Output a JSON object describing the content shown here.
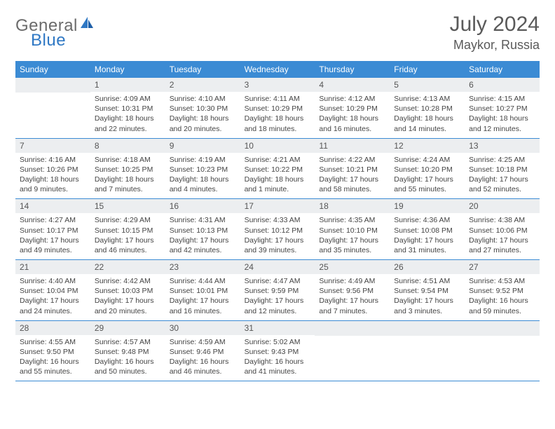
{
  "brand": {
    "part1": "General",
    "part2": "Blue"
  },
  "title": "July 2024",
  "location": "Maykor, Russia",
  "weekdays": [
    "Sunday",
    "Monday",
    "Tuesday",
    "Wednesday",
    "Thursday",
    "Friday",
    "Saturday"
  ],
  "colors": {
    "header_bar": "#3b8bd4",
    "day_number_bg": "#eceef0",
    "text": "#444444",
    "logo_gray": "#6b6b6b",
    "logo_blue": "#2f78c4"
  },
  "weeks": [
    [
      {
        "n": "",
        "sunrise": "",
        "sunset": "",
        "daylight": ""
      },
      {
        "n": "1",
        "sunrise": "Sunrise: 4:09 AM",
        "sunset": "Sunset: 10:31 PM",
        "daylight": "Daylight: 18 hours and 22 minutes."
      },
      {
        "n": "2",
        "sunrise": "Sunrise: 4:10 AM",
        "sunset": "Sunset: 10:30 PM",
        "daylight": "Daylight: 18 hours and 20 minutes."
      },
      {
        "n": "3",
        "sunrise": "Sunrise: 4:11 AM",
        "sunset": "Sunset: 10:29 PM",
        "daylight": "Daylight: 18 hours and 18 minutes."
      },
      {
        "n": "4",
        "sunrise": "Sunrise: 4:12 AM",
        "sunset": "Sunset: 10:29 PM",
        "daylight": "Daylight: 18 hours and 16 minutes."
      },
      {
        "n": "5",
        "sunrise": "Sunrise: 4:13 AM",
        "sunset": "Sunset: 10:28 PM",
        "daylight": "Daylight: 18 hours and 14 minutes."
      },
      {
        "n": "6",
        "sunrise": "Sunrise: 4:15 AM",
        "sunset": "Sunset: 10:27 PM",
        "daylight": "Daylight: 18 hours and 12 minutes."
      }
    ],
    [
      {
        "n": "7",
        "sunrise": "Sunrise: 4:16 AM",
        "sunset": "Sunset: 10:26 PM",
        "daylight": "Daylight: 18 hours and 9 minutes."
      },
      {
        "n": "8",
        "sunrise": "Sunrise: 4:18 AM",
        "sunset": "Sunset: 10:25 PM",
        "daylight": "Daylight: 18 hours and 7 minutes."
      },
      {
        "n": "9",
        "sunrise": "Sunrise: 4:19 AM",
        "sunset": "Sunset: 10:23 PM",
        "daylight": "Daylight: 18 hours and 4 minutes."
      },
      {
        "n": "10",
        "sunrise": "Sunrise: 4:21 AM",
        "sunset": "Sunset: 10:22 PM",
        "daylight": "Daylight: 18 hours and 1 minute."
      },
      {
        "n": "11",
        "sunrise": "Sunrise: 4:22 AM",
        "sunset": "Sunset: 10:21 PM",
        "daylight": "Daylight: 17 hours and 58 minutes."
      },
      {
        "n": "12",
        "sunrise": "Sunrise: 4:24 AM",
        "sunset": "Sunset: 10:20 PM",
        "daylight": "Daylight: 17 hours and 55 minutes."
      },
      {
        "n": "13",
        "sunrise": "Sunrise: 4:25 AM",
        "sunset": "Sunset: 10:18 PM",
        "daylight": "Daylight: 17 hours and 52 minutes."
      }
    ],
    [
      {
        "n": "14",
        "sunrise": "Sunrise: 4:27 AM",
        "sunset": "Sunset: 10:17 PM",
        "daylight": "Daylight: 17 hours and 49 minutes."
      },
      {
        "n": "15",
        "sunrise": "Sunrise: 4:29 AM",
        "sunset": "Sunset: 10:15 PM",
        "daylight": "Daylight: 17 hours and 46 minutes."
      },
      {
        "n": "16",
        "sunrise": "Sunrise: 4:31 AM",
        "sunset": "Sunset: 10:13 PM",
        "daylight": "Daylight: 17 hours and 42 minutes."
      },
      {
        "n": "17",
        "sunrise": "Sunrise: 4:33 AM",
        "sunset": "Sunset: 10:12 PM",
        "daylight": "Daylight: 17 hours and 39 minutes."
      },
      {
        "n": "18",
        "sunrise": "Sunrise: 4:35 AM",
        "sunset": "Sunset: 10:10 PM",
        "daylight": "Daylight: 17 hours and 35 minutes."
      },
      {
        "n": "19",
        "sunrise": "Sunrise: 4:36 AM",
        "sunset": "Sunset: 10:08 PM",
        "daylight": "Daylight: 17 hours and 31 minutes."
      },
      {
        "n": "20",
        "sunrise": "Sunrise: 4:38 AM",
        "sunset": "Sunset: 10:06 PM",
        "daylight": "Daylight: 17 hours and 27 minutes."
      }
    ],
    [
      {
        "n": "21",
        "sunrise": "Sunrise: 4:40 AM",
        "sunset": "Sunset: 10:04 PM",
        "daylight": "Daylight: 17 hours and 24 minutes."
      },
      {
        "n": "22",
        "sunrise": "Sunrise: 4:42 AM",
        "sunset": "Sunset: 10:03 PM",
        "daylight": "Daylight: 17 hours and 20 minutes."
      },
      {
        "n": "23",
        "sunrise": "Sunrise: 4:44 AM",
        "sunset": "Sunset: 10:01 PM",
        "daylight": "Daylight: 17 hours and 16 minutes."
      },
      {
        "n": "24",
        "sunrise": "Sunrise: 4:47 AM",
        "sunset": "Sunset: 9:59 PM",
        "daylight": "Daylight: 17 hours and 12 minutes."
      },
      {
        "n": "25",
        "sunrise": "Sunrise: 4:49 AM",
        "sunset": "Sunset: 9:56 PM",
        "daylight": "Daylight: 17 hours and 7 minutes."
      },
      {
        "n": "26",
        "sunrise": "Sunrise: 4:51 AM",
        "sunset": "Sunset: 9:54 PM",
        "daylight": "Daylight: 17 hours and 3 minutes."
      },
      {
        "n": "27",
        "sunrise": "Sunrise: 4:53 AM",
        "sunset": "Sunset: 9:52 PM",
        "daylight": "Daylight: 16 hours and 59 minutes."
      }
    ],
    [
      {
        "n": "28",
        "sunrise": "Sunrise: 4:55 AM",
        "sunset": "Sunset: 9:50 PM",
        "daylight": "Daylight: 16 hours and 55 minutes."
      },
      {
        "n": "29",
        "sunrise": "Sunrise: 4:57 AM",
        "sunset": "Sunset: 9:48 PM",
        "daylight": "Daylight: 16 hours and 50 minutes."
      },
      {
        "n": "30",
        "sunrise": "Sunrise: 4:59 AM",
        "sunset": "Sunset: 9:46 PM",
        "daylight": "Daylight: 16 hours and 46 minutes."
      },
      {
        "n": "31",
        "sunrise": "Sunrise: 5:02 AM",
        "sunset": "Sunset: 9:43 PM",
        "daylight": "Daylight: 16 hours and 41 minutes."
      },
      {
        "n": "",
        "sunrise": "",
        "sunset": "",
        "daylight": ""
      },
      {
        "n": "",
        "sunrise": "",
        "sunset": "",
        "daylight": ""
      },
      {
        "n": "",
        "sunrise": "",
        "sunset": "",
        "daylight": ""
      }
    ]
  ]
}
